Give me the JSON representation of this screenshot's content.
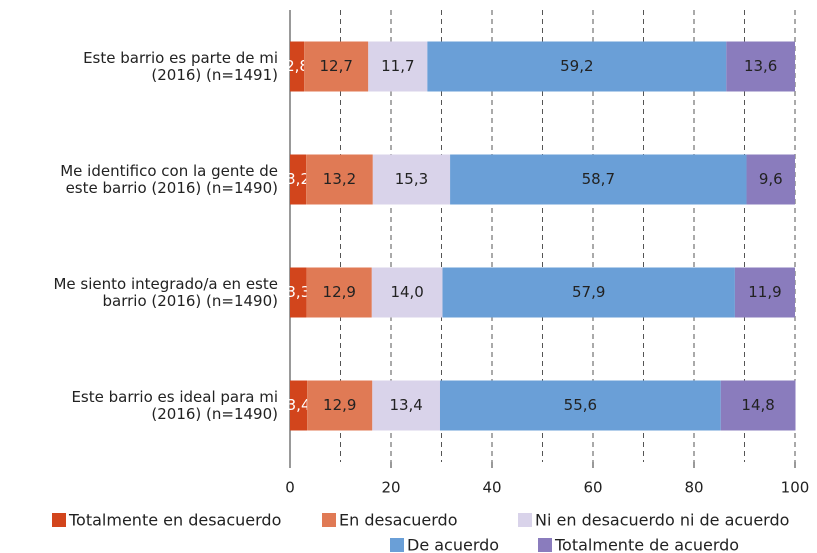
{
  "chart_data": {
    "type": "stacked_barh",
    "categories": [
      "Este barrio es parte de mi\n(2016) (n=1491)",
      "Me identifico con la gente de\neste barrio (2016) (n=1490)",
      "Me siento integrado/a en este\nbarrio (2016) (n=1490)",
      "Este barrio es ideal para mi\n(2016) (n=1490)"
    ],
    "series": [
      {
        "name": "Totalmente en desacuerdo",
        "color": "#d2451c",
        "label_color": "#ffffff",
        "values": [
          2.8,
          3.2,
          3.3,
          3.4
        ],
        "value_labels": [
          "2,8",
          "3,2",
          "3,3",
          "3,4"
        ]
      },
      {
        "name": "En desacuerdo",
        "color": "#e07a55",
        "label_color": "#222222",
        "values": [
          12.7,
          13.2,
          12.9,
          12.9
        ],
        "value_labels": [
          "12,7",
          "13,2",
          "12,9",
          "12,9"
        ]
      },
      {
        "name": "Ni en desacuerdo ni de acuerdo",
        "color": "#d9d3ea",
        "label_color": "#222222",
        "values": [
          11.7,
          15.3,
          14.0,
          13.4
        ],
        "value_labels": [
          "11,7",
          "15,3",
          "14,0",
          "13,4"
        ]
      },
      {
        "name": "De acuerdo",
        "color": "#6a9fd7",
        "label_color": "#222222",
        "values": [
          59.2,
          58.7,
          57.9,
          55.6
        ],
        "value_labels": [
          "59,2",
          "58,7",
          "57,9",
          "55,6"
        ]
      },
      {
        "name": "Totalmente de acuerdo",
        "color": "#8a7cbd",
        "label_color": "#222222",
        "values": [
          13.6,
          9.6,
          11.9,
          14.8
        ],
        "value_labels": [
          "13,6",
          "9,6",
          "11,9",
          "14,8"
        ]
      }
    ],
    "xlim": [
      0,
      100
    ],
    "xticks": [
      0,
      20,
      40,
      60,
      80,
      100
    ],
    "gridlines": [
      10,
      20,
      30,
      40,
      50,
      60,
      70,
      80,
      90,
      100
    ],
    "legend": "bottom"
  }
}
